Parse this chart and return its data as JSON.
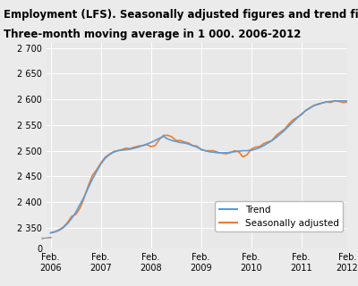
{
  "title_line1": "Employment (LFS). Seasonally adjusted figures and trend figures.",
  "title_line2": "Three-month moving average in 1 000. 2006-2012",
  "title_fontsize": 8.5,
  "trend_color": "#5B9BD5",
  "seasonal_color": "#ED7D31",
  "background_color": "#E8E8E8",
  "grid_color": "#FFFFFF",
  "fig_bg": "#EBEBEB",
  "ylim_main": [
    2330,
    2710
  ],
  "ylim_zero": [
    0,
    30
  ],
  "yticks_main": [
    2350,
    2400,
    2450,
    2500,
    2550,
    2600,
    2650,
    2700
  ],
  "ytick_labels_main": [
    "2 350",
    "2 400",
    "2 450",
    "2 500",
    "2 550",
    "2 600",
    "2 650",
    "2 700"
  ],
  "yticks_zero": [
    0
  ],
  "ytick_labels_zero": [
    "0"
  ],
  "trend": [
    2340,
    2342,
    2345,
    2350,
    2358,
    2368,
    2380,
    2395,
    2410,
    2428,
    2445,
    2460,
    2474,
    2485,
    2492,
    2497,
    2500,
    2501,
    2502,
    2503,
    2505,
    2507,
    2510,
    2513,
    2516,
    2520,
    2524,
    2528,
    2523,
    2520,
    2518,
    2516,
    2515,
    2513,
    2510,
    2507,
    2503,
    2500,
    2498,
    2497,
    2496,
    2496,
    2496,
    2497,
    2498,
    2499,
    2500,
    2500,
    2501,
    2503,
    2506,
    2510,
    2515,
    2520,
    2526,
    2533,
    2540,
    2548,
    2556,
    2564,
    2571,
    2578,
    2583,
    2588,
    2591,
    2593,
    2595,
    2596,
    2597,
    2597,
    2597,
    2597
  ],
  "seasonal": [
    2340,
    2342,
    2346,
    2351,
    2360,
    2372,
    2376,
    2388,
    2408,
    2432,
    2452,
    2463,
    2476,
    2487,
    2493,
    2498,
    2500,
    2502,
    2505,
    2504,
    2507,
    2509,
    2510,
    2512,
    2508,
    2510,
    2522,
    2530,
    2530,
    2527,
    2520,
    2520,
    2517,
    2515,
    2510,
    2509,
    2502,
    2500,
    2500,
    2500,
    2497,
    2495,
    2494,
    2496,
    2500,
    2498,
    2488,
    2492,
    2503,
    2507,
    2508,
    2514,
    2517,
    2520,
    2530,
    2536,
    2542,
    2552,
    2560,
    2565,
    2570,
    2578,
    2583,
    2588,
    2590,
    2593,
    2595,
    2594,
    2597,
    2596,
    2594,
    2595
  ],
  "n_points": 72,
  "x_tick_positions": [
    0,
    12,
    24,
    36,
    48,
    60,
    71
  ],
  "x_tick_labels_line1": [
    "Feb.",
    "Feb.",
    "Feb.",
    "Feb.",
    "Feb.",
    "Feb.",
    "Feb."
  ],
  "x_tick_labels_line2": [
    "2006",
    "2007",
    "2008",
    "2009",
    "2010",
    "2011",
    "2012"
  ],
  "legend_labels": [
    "Trend",
    "Seasonally adjusted"
  ],
  "legend_fontsize": 7.5
}
